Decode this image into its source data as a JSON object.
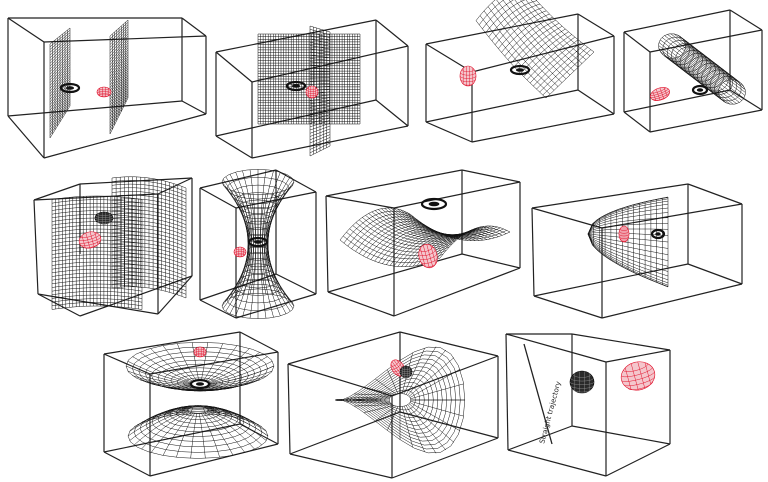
{
  "panels": [
    {
      "id": "two-planes"
    },
    {
      "id": "crossed-planes"
    },
    {
      "id": "parabolic-trough"
    },
    {
      "id": "tilted-cylinder"
    },
    {
      "id": "curved-sheets"
    },
    {
      "id": "hyperboloid-one-sheet"
    },
    {
      "id": "saddle"
    },
    {
      "id": "paraboloid"
    },
    {
      "id": "hyperboloid-two-sheets"
    },
    {
      "id": "twisted-surface"
    },
    {
      "id": "line-and-spheres",
      "line_label": "Straight trajectory"
    }
  ],
  "colors": {
    "box": "#222222",
    "mesh": "#111111",
    "ellipsoid": "#e0102a",
    "sphere": "#2a2a2a"
  }
}
